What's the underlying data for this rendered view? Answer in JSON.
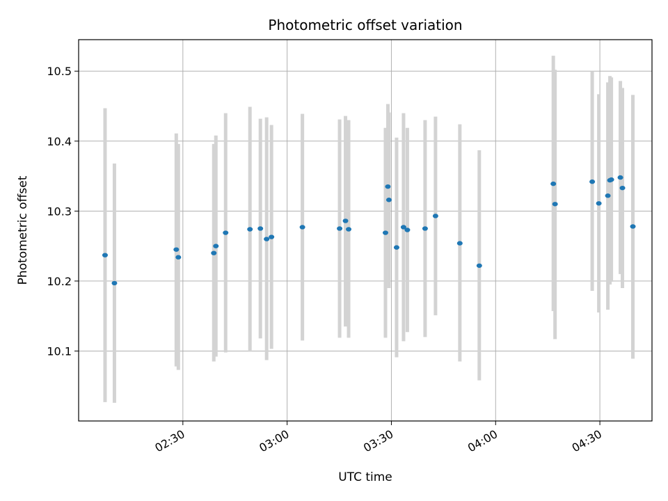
{
  "chart_data": {
    "type": "scatter",
    "title": "Photometric offset variation",
    "xlabel": "UTC time",
    "ylabel": "Photometric offset",
    "grid": true,
    "xlim_minutes": [
      2.0,
      4.75
    ],
    "ylim": [
      10.0,
      10.545
    ],
    "x_ticks": [
      {
        "value": 2.5,
        "label": "02:30"
      },
      {
        "value": 3.0,
        "label": "03:00"
      },
      {
        "value": 3.5,
        "label": "03:30"
      },
      {
        "value": 4.0,
        "label": "04:00"
      },
      {
        "value": 4.5,
        "label": "04:30"
      }
    ],
    "y_ticks": [
      {
        "value": 10.1,
        "label": "10.1"
      },
      {
        "value": 10.2,
        "label": "10.2"
      },
      {
        "value": 10.3,
        "label": "10.3"
      },
      {
        "value": 10.4,
        "label": "10.4"
      },
      {
        "value": 10.5,
        "label": "10.5"
      }
    ],
    "x_unit": "hours (UTC)",
    "colors": {
      "point": "#1f77b4",
      "errorbar": "#d3d3d3",
      "grid": "#b0b0b0"
    },
    "series": [
      {
        "name": "offset",
        "points": [
          {
            "x": 2.1267,
            "y": 10.237,
            "err_low": 10.027,
            "err_high": 10.447
          },
          {
            "x": 2.1717,
            "y": 10.197,
            "err_low": 10.026,
            "err_high": 10.368
          },
          {
            "x": 2.4683,
            "y": 10.245,
            "err_low": 10.078,
            "err_high": 10.411
          },
          {
            "x": 2.4783,
            "y": 10.234,
            "err_low": 10.073,
            "err_high": 10.396
          },
          {
            "x": 2.6483,
            "y": 10.24,
            "err_low": 10.085,
            "err_high": 10.396
          },
          {
            "x": 2.6583,
            "y": 10.25,
            "err_low": 10.092,
            "err_high": 10.408
          },
          {
            "x": 2.705,
            "y": 10.269,
            "err_low": 10.098,
            "err_high": 10.44
          },
          {
            "x": 2.8217,
            "y": 10.274,
            "err_low": 10.099,
            "err_high": 10.449
          },
          {
            "x": 2.8717,
            "y": 10.275,
            "err_low": 10.118,
            "err_high": 10.432
          },
          {
            "x": 2.9017,
            "y": 10.26,
            "err_low": 10.087,
            "err_high": 10.434
          },
          {
            "x": 2.925,
            "y": 10.263,
            "err_low": 10.103,
            "err_high": 10.423
          },
          {
            "x": 3.0733,
            "y": 10.277,
            "err_low": 10.115,
            "err_high": 10.439
          },
          {
            "x": 3.2517,
            "y": 10.275,
            "err_low": 10.119,
            "err_high": 10.431
          },
          {
            "x": 3.28,
            "y": 10.286,
            "err_low": 10.135,
            "err_high": 10.436
          },
          {
            "x": 3.295,
            "y": 10.274,
            "err_low": 10.119,
            "err_high": 10.43
          },
          {
            "x": 3.4717,
            "y": 10.269,
            "err_low": 10.119,
            "err_high": 10.419
          },
          {
            "x": 3.4833,
            "y": 10.335,
            "err_low": 10.217,
            "err_high": 10.453
          },
          {
            "x": 3.4883,
            "y": 10.316,
            "err_low": 10.19,
            "err_high": 10.441
          },
          {
            "x": 3.525,
            "y": 10.248,
            "err_low": 10.091,
            "err_high": 10.405
          },
          {
            "x": 3.5583,
            "y": 10.277,
            "err_low": 10.114,
            "err_high": 10.44
          },
          {
            "x": 3.5767,
            "y": 10.273,
            "err_low": 10.127,
            "err_high": 10.419
          },
          {
            "x": 3.6617,
            "y": 10.275,
            "err_low": 10.12,
            "err_high": 10.43
          },
          {
            "x": 3.7117,
            "y": 10.293,
            "err_low": 10.151,
            "err_high": 10.435
          },
          {
            "x": 3.8283,
            "y": 10.254,
            "err_low": 10.085,
            "err_high": 10.424
          },
          {
            "x": 3.9217,
            "y": 10.222,
            "err_low": 10.058,
            "err_high": 10.387
          },
          {
            "x": 4.2767,
            "y": 10.339,
            "err_low": 10.157,
            "err_high": 10.522
          },
          {
            "x": 4.285,
            "y": 10.31,
            "err_low": 10.117,
            "err_high": 10.502
          },
          {
            "x": 4.4633,
            "y": 10.342,
            "err_low": 10.186,
            "err_high": 10.5
          },
          {
            "x": 4.495,
            "y": 10.311,
            "err_low": 10.155,
            "err_high": 10.467
          },
          {
            "x": 4.5383,
            "y": 10.322,
            "err_low": 10.159,
            "err_high": 10.484
          },
          {
            "x": 4.5483,
            "y": 10.344,
            "err_low": 10.195,
            "err_high": 10.493
          },
          {
            "x": 4.555,
            "y": 10.345,
            "err_low": 10.199,
            "err_high": 10.491
          },
          {
            "x": 4.5983,
            "y": 10.348,
            "err_low": 10.21,
            "err_high": 10.486
          },
          {
            "x": 4.6083,
            "y": 10.333,
            "err_low": 10.19,
            "err_high": 10.476
          },
          {
            "x": 4.6583,
            "y": 10.278,
            "err_low": 10.089,
            "err_high": 10.466
          }
        ]
      }
    ]
  }
}
